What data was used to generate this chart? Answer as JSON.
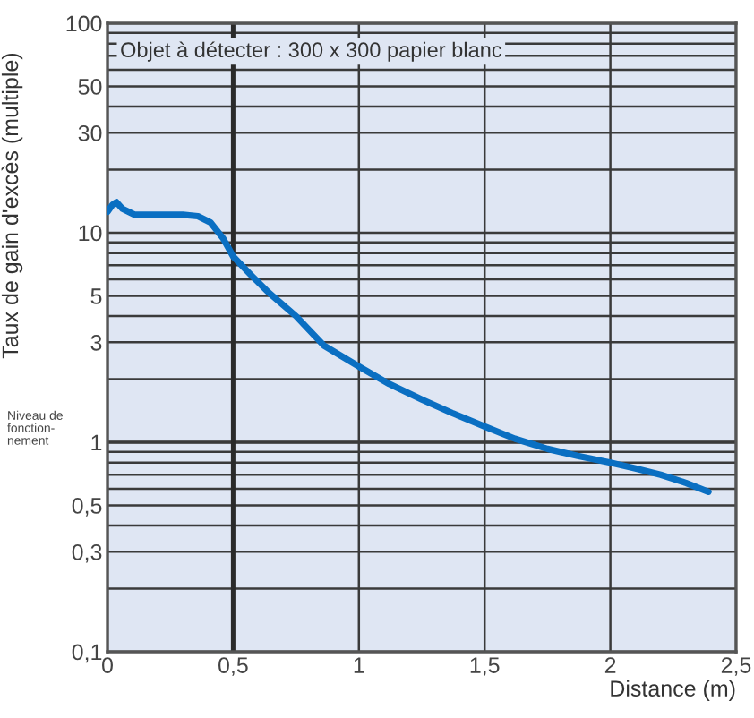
{
  "chart_data": {
    "type": "line",
    "xlabel": "Distance (m)",
    "ylabel": "Taux de gain d'excès (multiple)",
    "annotations": [
      "Objet à détecter : 300 x 300 papier blanc"
    ],
    "x": [
      0,
      0.02,
      0.036,
      0.06,
      0.107,
      0.2,
      0.3,
      0.36,
      0.41,
      0.46,
      0.5,
      0.57,
      0.64,
      0.75,
      0.86,
      1.0,
      1.12,
      1.25,
      1.37,
      1.5,
      1.62,
      1.75,
      1.87,
      2.0,
      2.1,
      2.2,
      2.3,
      2.39
    ],
    "series": [
      {
        "color": "#0a6fc2",
        "values": [
          12.6,
          13.6,
          14,
          13,
          12.2,
          12.2,
          12.2,
          12,
          11.2,
          9.4,
          7.7,
          6.3,
          5.2,
          4.0,
          2.9,
          2.3,
          1.9,
          1.6,
          1.38,
          1.19,
          1.04,
          0.93,
          0.86,
          0.8,
          0.75,
          0.7,
          0.64,
          0.58
        ]
      }
    ],
    "xlim": [
      0,
      2.5
    ],
    "xticks": [
      0,
      {
        "value": 0.5,
        "label": "0,5"
      },
      1,
      {
        "value": 1.5,
        "label": "1,5"
      },
      2,
      {
        "value": 2.5,
        "label": "2,5"
      }
    ],
    "log": "y",
    "ylim": [
      0.1,
      100
    ],
    "yticks": [
      {
        "value": 0.1,
        "label": "0,1"
      },
      {
        "value": 0.2,
        "label": null
      },
      {
        "value": 0.3,
        "label": "0,3"
      },
      {
        "value": 0.4,
        "label": null
      },
      {
        "value": 0.5,
        "label": "0,5"
      },
      {
        "value": 0.6,
        "label": null
      },
      {
        "value": 0.7,
        "label": null
      },
      {
        "value": 0.8,
        "label": null
      },
      {
        "value": 0.9,
        "label": null
      },
      1,
      {
        "value": 2,
        "label": null
      },
      3,
      {
        "value": 4,
        "label": null
      },
      5,
      {
        "value": 6,
        "label": null
      },
      {
        "value": 7,
        "label": null
      },
      {
        "value": 8,
        "label": null
      },
      {
        "value": 9,
        "label": null
      },
      10,
      {
        "value": 20,
        "label": null
      },
      30,
      {
        "value": 40,
        "label": null
      },
      50,
      {
        "value": 60,
        "label": null
      },
      {
        "value": 70,
        "label": null
      },
      {
        "value": 80,
        "label": null
      },
      {
        "value": 90,
        "label": null
      },
      100
    ],
    "ref_lines": [
      {
        "axis": "y",
        "value": 1,
        "label": "Niveau de\nfonction-\nnement",
        "color": "#3a3a3a"
      },
      {
        "axis": "x",
        "value": 0.5,
        "color": "#2a2a2a"
      }
    ],
    "grid": true,
    "marker": "none",
    "line_style": "solid"
  }
}
